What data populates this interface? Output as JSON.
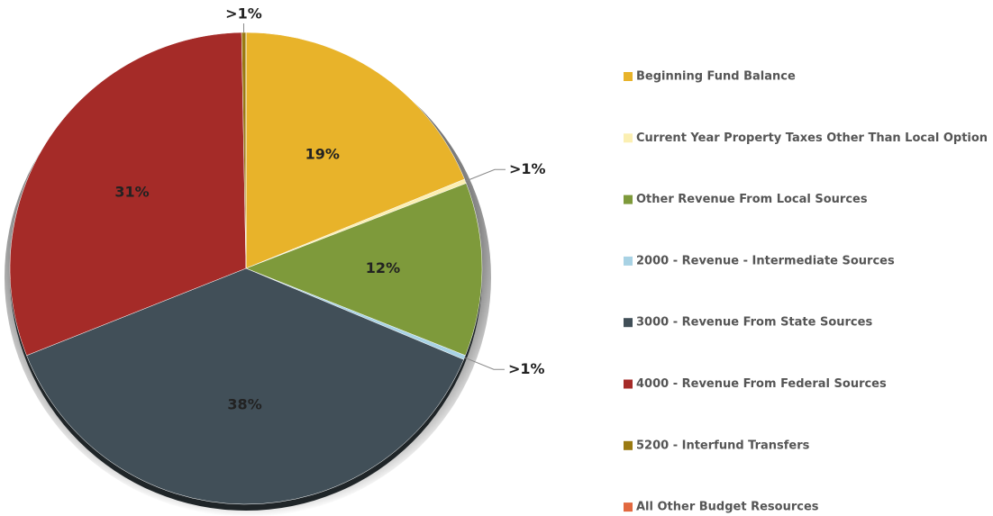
{
  "chart_data": {
    "type": "pie",
    "categories": [
      "Beginning Fund Balance",
      "Current Year Property Taxes Other Than Local Option",
      "Other Revenue From Local Sources",
      "2000 - Revenue - Intermediate Sources",
      "3000 - Revenue From State Sources",
      "4000 - Revenue From Federal Sources",
      "5200 - Interfund Transfers",
      "All Other Budget Resources"
    ],
    "values": [
      19,
      0.3,
      12,
      0.3,
      38,
      31,
      0.3,
      0
    ],
    "value_labels": [
      "19%",
      ">1%",
      "12%",
      ">1%",
      "38%",
      "31%",
      ">1%",
      null
    ],
    "colors": [
      "#e8b32a",
      "#fbefb2",
      "#7e9a3b",
      "#a8d2e4",
      "#414f58",
      "#a52b28",
      "#9a7a12",
      "#e2683f"
    ],
    "legend": "right"
  }
}
